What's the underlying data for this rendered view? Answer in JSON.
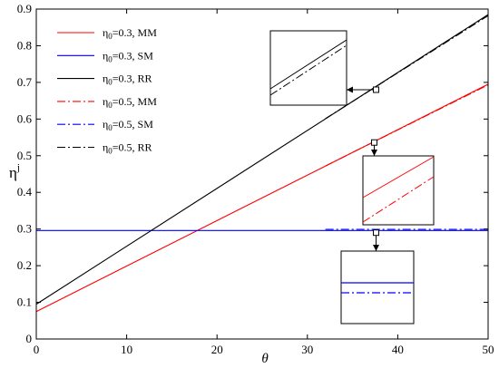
{
  "chart_data": {
    "type": "line",
    "title": "",
    "xlabel": "θ",
    "ylabel": "η",
    "ylabel_sup": "j",
    "xlim": [
      0,
      50
    ],
    "ylim": [
      0,
      0.9
    ],
    "xticks": [
      0,
      10,
      20,
      30,
      40,
      50
    ],
    "yticks": [
      0,
      0.1,
      0.2,
      0.3,
      0.4,
      0.5,
      0.6,
      0.7,
      0.8,
      0.9
    ],
    "grid": false,
    "legend_position": "top-left",
    "series": [
      {
        "name": "η0=0.3, MM",
        "sym": "η",
        "sub": "0",
        "rest": "=0.3, MM",
        "color": "#ff0000",
        "dash": "solid",
        "x": [
          0,
          50
        ],
        "y": [
          0.075,
          0.695
        ]
      },
      {
        "name": "η0=0.3, SM",
        "sym": "η",
        "sub": "0",
        "rest": "=0.3, SM",
        "color": "#0000ff",
        "dash": "solid",
        "x": [
          0,
          50
        ],
        "y": [
          0.296,
          0.296
        ]
      },
      {
        "name": "η0=0.3, RR",
        "sym": "η",
        "sub": "0",
        "rest": "=0.3, RR",
        "color": "#000000",
        "dash": "solid",
        "x": [
          0,
          50
        ],
        "y": [
          0.095,
          0.885
        ]
      },
      {
        "name": "η0=0.5, MM",
        "sym": "η",
        "sub": "0",
        "rest": "=0.5, MM",
        "color": "#ff0000",
        "dash": "dashdot",
        "x": [
          32,
          50
        ],
        "y": [
          0.472,
          0.693
        ]
      },
      {
        "name": "η0=0.5, SM",
        "sym": "η",
        "sub": "0",
        "rest": "=0.5, SM",
        "color": "#0000ff",
        "dash": "dashdot",
        "x": [
          32,
          50
        ],
        "y": [
          0.299,
          0.299
        ]
      },
      {
        "name": "η0=0.5, RR",
        "sym": "η",
        "sub": "0",
        "rest": "=0.5, RR",
        "color": "#000000",
        "dash": "dashdot",
        "x": [
          32,
          50
        ],
        "y": [
          0.601,
          0.882
        ]
      }
    ],
    "insets": [
      {
        "target": "RR lines",
        "at": [
          37.6,
          0.68
        ]
      },
      {
        "target": "MM lines",
        "at": [
          37.4,
          0.536
        ]
      },
      {
        "target": "SM lines",
        "at": [
          37.6,
          0.29
        ]
      }
    ]
  }
}
